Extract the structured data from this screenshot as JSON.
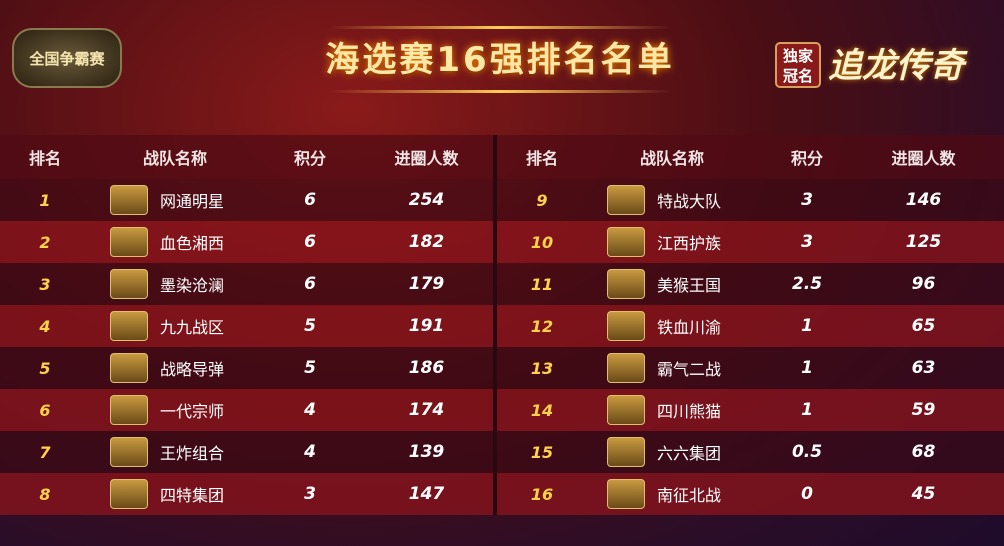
{
  "header": {
    "title": "海选赛16强排名名单",
    "left_logo": "全国争霸赛",
    "sponsor_tag": "独家冠名",
    "brand": "追龙传奇"
  },
  "columns": [
    "排名",
    "战队名称",
    "积分",
    "进圈人数"
  ],
  "left": [
    {
      "rank": "1",
      "team": "网通明星",
      "points": "6",
      "count": "254"
    },
    {
      "rank": "2",
      "team": "血色湘西",
      "points": "6",
      "count": "182"
    },
    {
      "rank": "3",
      "team": "墨染沧澜",
      "points": "6",
      "count": "179"
    },
    {
      "rank": "4",
      "team": "九九战区",
      "points": "5",
      "count": "191"
    },
    {
      "rank": "5",
      "team": "战略导弹",
      "points": "5",
      "count": "186"
    },
    {
      "rank": "6",
      "team": "一代宗师",
      "points": "4",
      "count": "174"
    },
    {
      "rank": "7",
      "team": "王炸组合",
      "points": "4",
      "count": "139"
    },
    {
      "rank": "8",
      "team": "四特集团",
      "points": "3",
      "count": "147"
    }
  ],
  "right": [
    {
      "rank": "9",
      "team": "特战大队",
      "points": "3",
      "count": "146"
    },
    {
      "rank": "10",
      "team": "江西护族",
      "points": "3",
      "count": "125"
    },
    {
      "rank": "11",
      "team": "美猴王国",
      "points": "2.5",
      "count": "96"
    },
    {
      "rank": "12",
      "team": "铁血川渝",
      "points": "1",
      "count": "65"
    },
    {
      "rank": "13",
      "team": "霸气二战",
      "points": "1",
      "count": "63"
    },
    {
      "rank": "14",
      "team": "四川熊猫",
      "points": "1",
      "count": "59"
    },
    {
      "rank": "15",
      "team": "六六集团",
      "points": "0.5",
      "count": "68"
    },
    {
      "rank": "16",
      "team": "南征北战",
      "points": "0",
      "count": "45"
    }
  ]
}
